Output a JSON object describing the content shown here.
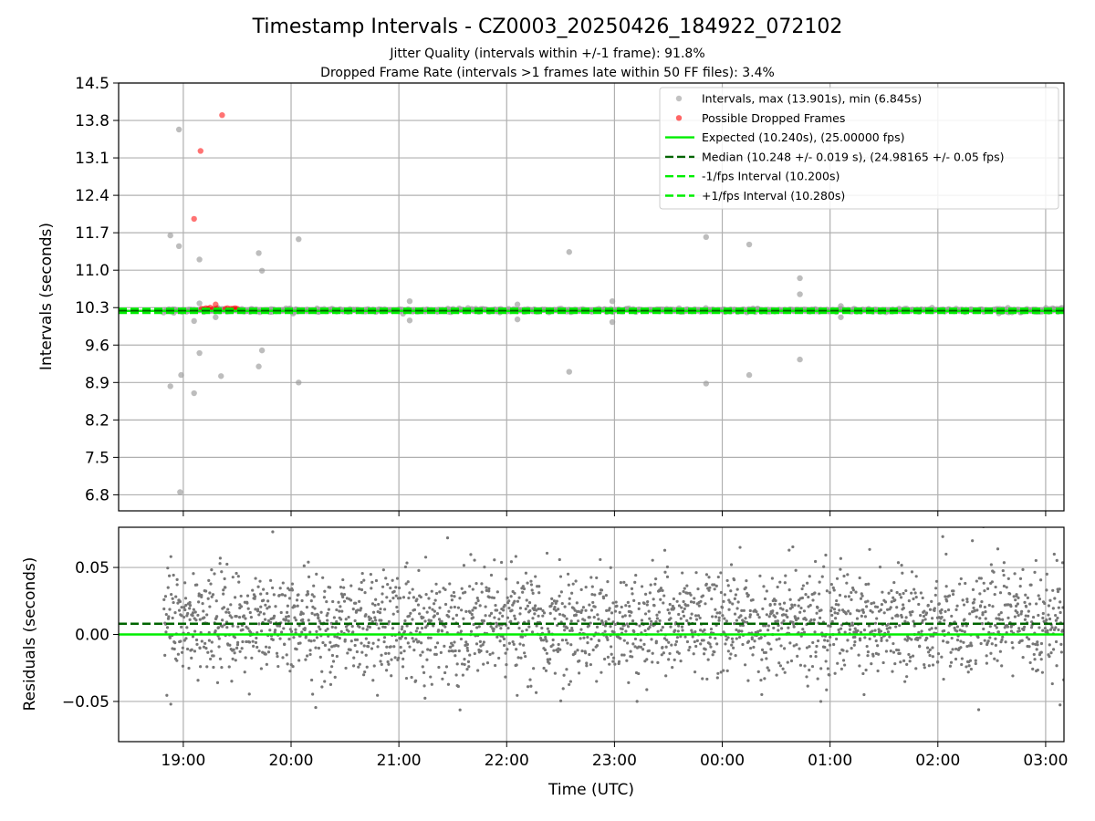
{
  "chart_data": [
    {
      "type": "scatter",
      "title": "Timestamp Intervals - CZ0003_20250426_184922_072102",
      "subtitle_lines": [
        "Jitter Quality (intervals within +/-1 frame): 91.8%",
        "Dropped Frame Rate (intervals >1 frames late within 50 FF files): 3.4%"
      ],
      "xlabel": "",
      "ylabel": "Intervals (seconds)",
      "ylim": [
        6.5,
        14.5
      ],
      "yticks": [
        6.8,
        7.5,
        8.2,
        8.9,
        9.6,
        10.3,
        11.0,
        11.7,
        12.4,
        13.1,
        13.8,
        14.5
      ],
      "ytick_labels": [
        "6.8",
        "7.5",
        "8.2",
        "8.9",
        "9.6",
        "10.3",
        "11.0",
        "11.7",
        "12.4",
        "13.1",
        "13.8",
        "14.5"
      ],
      "x_unit": "hours since 18:00 UTC",
      "xlim": [
        0.4,
        9.17
      ],
      "grid": true,
      "legend_position": "top-right",
      "legend": [
        "Intervals, max (13.901s), min (6.845s)",
        "Possible Dropped Frames",
        "Expected (10.240s), (25.00000 fps)",
        "Median (10.248 +/- 0.019 s), (24.98165 +/- 0.05 fps)",
        "-1/fps Interval (10.200s)",
        "+1/fps Interval (10.280s)"
      ],
      "series": [
        {
          "name": "Intervals, max (13.901s), min (6.845s)",
          "kind": "points",
          "color": "#999999",
          "dense_band": {
            "x_start": 0.82,
            "x_end": 9.17,
            "y_center": 10.25,
            "y_spread": 0.03
          },
          "outliers": [
            [
              0.88,
              11.65
            ],
            [
              0.88,
              8.83
            ],
            [
              0.96,
              13.63
            ],
            [
              0.96,
              11.45
            ],
            [
              0.97,
              6.85
            ],
            [
              0.98,
              9.04
            ],
            [
              1.1,
              8.7
            ],
            [
              1.1,
              10.05
            ],
            [
              1.15,
              11.2
            ],
            [
              1.15,
              9.45
            ],
            [
              1.15,
              10.38
            ],
            [
              1.3,
              10.12
            ],
            [
              1.35,
              9.02
            ],
            [
              1.7,
              11.32
            ],
            [
              1.7,
              9.2
            ],
            [
              1.73,
              10.99
            ],
            [
              1.73,
              9.5
            ],
            [
              2.07,
              11.58
            ],
            [
              2.07,
              8.9
            ],
            [
              3.1,
              10.42
            ],
            [
              3.1,
              10.06
            ],
            [
              4.1,
              10.36
            ],
            [
              4.1,
              10.08
            ],
            [
              4.58,
              11.34
            ],
            [
              4.58,
              9.1
            ],
            [
              4.98,
              10.42
            ],
            [
              4.98,
              10.03
            ],
            [
              5.85,
              11.62
            ],
            [
              5.85,
              8.88
            ],
            [
              6.25,
              11.48
            ],
            [
              6.25,
              9.04
            ],
            [
              6.72,
              10.85
            ],
            [
              6.72,
              10.55
            ],
            [
              6.72,
              9.33
            ],
            [
              7.1,
              10.33
            ],
            [
              7.1,
              10.12
            ]
          ]
        },
        {
          "name": "Possible Dropped Frames",
          "kind": "points",
          "color": "#ff0000",
          "points": [
            [
              1.36,
              13.9
            ],
            [
              1.16,
              13.23
            ],
            [
              1.1,
              11.96
            ],
            [
              1.17,
              10.28
            ],
            [
              1.19,
              10.27
            ],
            [
              1.21,
              10.29
            ],
            [
              1.23,
              10.28
            ],
            [
              1.25,
              10.3
            ],
            [
              1.28,
              10.28
            ],
            [
              1.3,
              10.36
            ],
            [
              1.31,
              10.28
            ],
            [
              1.39,
              10.28
            ],
            [
              1.41,
              10.29
            ],
            [
              1.44,
              10.28
            ],
            [
              1.46,
              10.28
            ],
            [
              1.48,
              10.29
            ],
            [
              1.5,
              10.28
            ]
          ]
        },
        {
          "name": "Expected (10.240s), (25.00000 fps)",
          "kind": "hline",
          "value": 10.24,
          "color": "#00ee00",
          "style": "solid"
        },
        {
          "name": "Median (10.248 +/- 0.019 s), (24.98165 +/- 0.05 fps)",
          "kind": "hline",
          "value": 10.248,
          "color": "#006400",
          "style": "dashed"
        },
        {
          "name": "-1/fps Interval (10.200s)",
          "kind": "hline",
          "value": 10.2,
          "color": "#00ee00",
          "style": "dashed"
        },
        {
          "name": "+1/fps Interval (10.280s)",
          "kind": "hline",
          "value": 10.28,
          "color": "#00ee00",
          "style": "dashed"
        }
      ]
    },
    {
      "type": "scatter",
      "title": "",
      "xlabel": "Time (UTC)",
      "ylabel": "Residuals (seconds)",
      "ylim": [
        -0.08,
        0.08
      ],
      "yticks": [
        -0.05,
        0.0,
        0.05
      ],
      "ytick_labels": [
        "−0.05",
        "0.00",
        "0.05"
      ],
      "x_unit": "hours since 18:00 UTC",
      "xlim": [
        0.4,
        9.17
      ],
      "xticks": [
        1,
        2,
        3,
        4,
        5,
        6,
        7,
        8,
        9
      ],
      "xtick_labels": [
        "19:00",
        "20:00",
        "21:00",
        "22:00",
        "23:00",
        "00:00",
        "01:00",
        "02:00",
        "03:00"
      ],
      "grid": true,
      "series": [
        {
          "name": "",
          "kind": "points",
          "color": "#777777",
          "dense_band": {
            "x_start": 0.82,
            "x_end": 9.17,
            "y_center": 0.008,
            "y_spread": 0.02
          }
        },
        {
          "name": "",
          "kind": "hline",
          "value": 0.008,
          "color": "#006400",
          "style": "dashed"
        },
        {
          "name": "",
          "kind": "hline",
          "value": 0.0,
          "color": "#00ee00",
          "style": "solid"
        }
      ]
    }
  ]
}
